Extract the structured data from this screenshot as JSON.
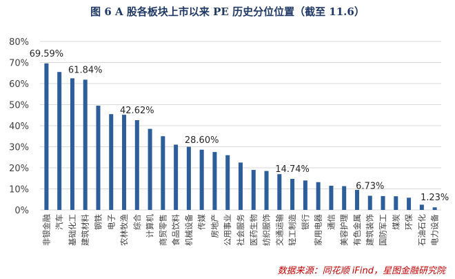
{
  "title": "图 6   A 股各板块上市以来 PE 历史分位位置（截至 11.6）",
  "source": "数据来源：同花顺 iFind，星图金融研究院",
  "colors": {
    "bar": "#2e5e9a",
    "title": "#1f3864",
    "source": "#c00000",
    "grid": "#d9d9d9",
    "axis_text": "#404040"
  },
  "chart_data": {
    "type": "bar",
    "title": "图 6   A 股各板块上市以来 PE 历史分位位置（截至 11.6）",
    "xlabel": "",
    "ylabel": "",
    "ylim": [
      0,
      80
    ],
    "yticks": [
      0,
      10,
      20,
      30,
      40,
      50,
      60,
      70,
      80
    ],
    "ytick_labels": [
      "0%",
      "10%",
      "20%",
      "30%",
      "40%",
      "50%",
      "60%",
      "70%",
      "80%"
    ],
    "grid": true,
    "categories": [
      "非银金融",
      "汽车",
      "基础化工",
      "建筑材料",
      "钢铁",
      "电子",
      "农林牧渔",
      "综合",
      "计算机",
      "商贸零售",
      "食品饮料",
      "机械设备",
      "传媒",
      "房地产",
      "公用事业",
      "社会服务",
      "医药生物",
      "纺织服饰",
      "交通运输",
      "轻工制造",
      "银行",
      "家用电器",
      "通信",
      "美容护理",
      "有色金属",
      "建筑装饰",
      "国防军工",
      "煤炭",
      "环保",
      "石油石化",
      "电力设备"
    ],
    "values": [
      69.59,
      65.5,
      62.5,
      61.84,
      49.5,
      45.5,
      45.2,
      42.62,
      38.5,
      35.0,
      31.0,
      30.0,
      28.6,
      27.5,
      26.0,
      22.5,
      19.0,
      18.5,
      17.0,
      14.74,
      14.0,
      13.2,
      11.5,
      11.3,
      9.5,
      6.73,
      6.6,
      6.5,
      5.8,
      2.5,
      1.23
    ],
    "data_labels": [
      {
        "index": 0,
        "text": "69.59%"
      },
      {
        "index": 3,
        "text": "61.84%"
      },
      {
        "index": 7,
        "text": "42.62%"
      },
      {
        "index": 12,
        "text": "28.60%"
      },
      {
        "index": 19,
        "text": "14.74%"
      },
      {
        "index": 25,
        "text": "6.73%"
      },
      {
        "index": 30,
        "text": "1.23%"
      }
    ]
  }
}
